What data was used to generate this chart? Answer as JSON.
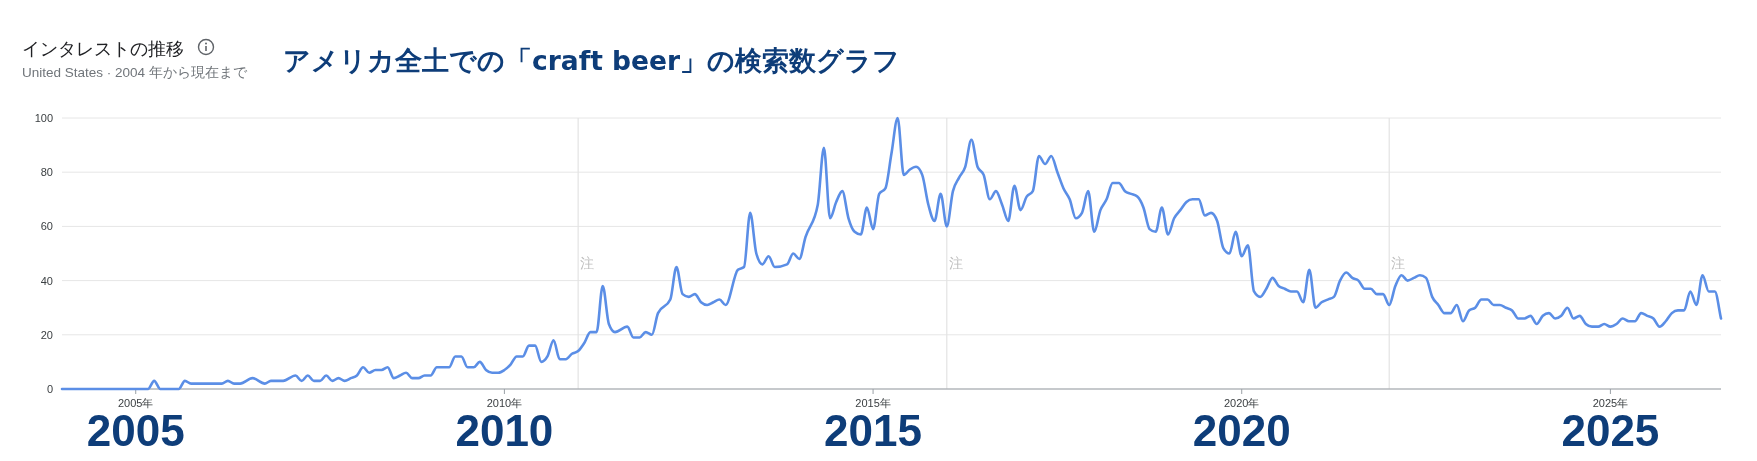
{
  "chart_data": {
    "type": "line",
    "title": "インタレストの推移",
    "subtitle": "United States · 2004 年から現在まで",
    "annotations": [
      "アメリカ全土での「craft beer」の検索数グラフ",
      "2005",
      "2010",
      "2015",
      "2020",
      "2025"
    ],
    "x": [
      "2004-01",
      "2005-03",
      "2005-04",
      "2005-05",
      "2005-08",
      "2005-09",
      "2005-10",
      "2006-03",
      "2006-04",
      "2006-05",
      "2006-06",
      "2006-08",
      "2006-10",
      "2006-11",
      "2007-01",
      "2007-03",
      "2007-04",
      "2007-05",
      "2007-06",
      "2007-07",
      "2007-08",
      "2007-09",
      "2007-10",
      "2007-11",
      "2007-12",
      "2008-01",
      "2008-02",
      "2008-03",
      "2008-04",
      "2008-05",
      "2008-06",
      "2008-07",
      "2008-08",
      "2008-09",
      "2008-10",
      "2008-11",
      "2008-12",
      "2009-01",
      "2009-02",
      "2009-04",
      "2009-05",
      "2009-06",
      "2009-07",
      "2009-08",
      "2009-09",
      "2009-10",
      "2009-11",
      "2009-12",
      "2010-01",
      "2010-02",
      "2010-03",
      "2010-04",
      "2010-05",
      "2010-06",
      "2010-07",
      "2010-08",
      "2010-09",
      "2010-10",
      "2010-11",
      "2010-12",
      "2011-01",
      "2011-02",
      "2011-03",
      "2011-04",
      "2011-05",
      "2011-06",
      "2011-07",
      "2011-09",
      "2011-10",
      "2011-11",
      "2011-12",
      "2012-01",
      "2012-02",
      "2012-04",
      "2012-05",
      "2012-06",
      "2012-07",
      "2012-08",
      "2012-09",
      "2012-10",
      "2012-11",
      "2012-12",
      "2013-01",
      "2013-03",
      "2013-04",
      "2013-05",
      "2013-06",
      "2013-07",
      "2013-08",
      "2013-09",
      "2013-11",
      "2013-12",
      "2014-01",
      "2014-02",
      "2014-04",
      "2014-05",
      "2014-06",
      "2014-07",
      "2014-08",
      "2014-09",
      "2014-10",
      "2014-11",
      "2014-12",
      "2015-01",
      "2015-02",
      "2015-03",
      "2015-04",
      "2015-05",
      "2015-06",
      "2015-07",
      "2015-08",
      "2015-09",
      "2015-10",
      "2015-11",
      "2015-12",
      "2016-01",
      "2016-02",
      "2016-03",
      "2016-04",
      "2016-05",
      "2016-06",
      "2016-07",
      "2016-08",
      "2016-09",
      "2016-10",
      "2016-11",
      "2016-12",
      "2017-01",
      "2017-02",
      "2017-03",
      "2017-04",
      "2017-05",
      "2017-06",
      "2017-07",
      "2017-08",
      "2017-09",
      "2017-10",
      "2017-11",
      "2017-12",
      "2018-01",
      "2018-02",
      "2018-03",
      "2018-04",
      "2018-05",
      "2018-06",
      "2018-07",
      "2018-08",
      "2018-09",
      "2018-10",
      "2018-11",
      "2018-12",
      "2019-01",
      "2019-02",
      "2019-03",
      "2019-04",
      "2019-05",
      "2019-06",
      "2019-07",
      "2019-08",
      "2019-09",
      "2019-10",
      "2019-11",
      "2019-12",
      "2020-01",
      "2020-02",
      "2020-03",
      "2020-04",
      "2020-05",
      "2020-06",
      "2020-07",
      "2020-08",
      "2020-09",
      "2020-10",
      "2020-11",
      "2020-12",
      "2021-01",
      "2021-02",
      "2021-03",
      "2021-04",
      "2021-05",
      "2021-06",
      "2021-07",
      "2021-08",
      "2021-09",
      "2021-10",
      "2021-11",
      "2021-12",
      "2022-01",
      "2022-02",
      "2022-03",
      "2022-04",
      "2022-05",
      "2022-06",
      "2022-07",
      "2022-08",
      "2022-09",
      "2022-10",
      "2022-11",
      "2022-12",
      "2023-01",
      "2023-02",
      "2023-03",
      "2023-04",
      "2023-05",
      "2023-06",
      "2023-07",
      "2023-08",
      "2023-09",
      "2023-10",
      "2023-11",
      "2023-12",
      "2024-01",
      "2024-02",
      "2024-03",
      "2024-04",
      "2024-05",
      "2024-06",
      "2024-07",
      "2024-08",
      "2024-09",
      "2024-10",
      "2024-11",
      "2024-12",
      "2025-01",
      "2025-02",
      "2025-03",
      "2025-04",
      "2025-05",
      "2025-06",
      "2025-07",
      "2025-08",
      "2025-09",
      "2025-10",
      "2025-11",
      "2025-12",
      "2026-01",
      "2026-02",
      "2026-03",
      "2026-04",
      "2026-05",
      "2026-06",
      "2026-07"
    ],
    "series": [
      {
        "color": "#5b8ee6",
        "values": [
          0,
          0,
          3,
          0,
          0,
          3,
          2,
          2,
          3,
          2,
          2,
          4,
          2,
          3,
          3,
          5,
          3,
          5,
          3,
          3,
          5,
          3,
          4,
          3,
          4,
          5,
          8,
          6,
          7,
          7,
          8,
          4,
          5,
          6,
          4,
          4,
          5,
          5,
          8,
          8,
          12,
          12,
          8,
          8,
          10,
          7,
          6,
          6,
          7,
          9,
          12,
          12,
          16,
          16,
          10,
          12,
          18,
          11,
          11,
          13,
          14,
          17,
          21,
          21,
          38,
          24,
          21,
          23,
          19,
          19,
          21,
          20,
          28,
          33,
          45,
          35,
          34,
          35,
          32,
          31,
          32,
          33,
          31,
          44,
          45,
          65,
          50,
          46,
          49,
          45,
          46,
          50,
          48,
          56,
          68,
          89,
          63,
          69,
          73,
          63,
          58,
          57,
          67,
          59,
          72,
          74,
          87,
          100,
          79,
          81,
          82,
          79,
          68,
          62,
          72,
          60,
          73,
          78,
          82,
          92,
          82,
          79,
          70,
          73,
          68,
          62,
          75,
          66,
          71,
          73,
          86,
          83,
          86,
          80,
          74,
          70,
          63,
          65,
          73,
          58,
          66,
          70,
          76,
          76,
          73,
          72,
          71,
          67,
          59,
          58,
          67,
          57,
          63,
          66,
          69,
          70,
          70,
          64,
          65,
          62,
          52,
          50,
          58,
          49,
          53,
          36,
          34,
          37,
          41,
          38,
          37,
          36,
          36,
          32,
          44,
          30,
          32,
          33,
          34,
          40,
          43,
          41,
          40,
          37,
          37,
          35,
          35,
          31,
          38,
          42,
          40,
          41,
          42,
          41,
          34,
          31,
          28,
          28,
          31,
          25,
          29,
          30,
          33,
          33,
          31,
          31,
          30,
          29,
          26,
          26,
          27,
          24,
          27,
          28,
          26,
          27,
          30,
          26,
          27,
          24,
          23,
          23,
          24,
          23,
          24,
          26,
          25,
          25,
          28,
          27,
          26,
          23,
          25,
          28,
          29,
          29,
          36,
          31,
          42,
          36,
          36,
          26
        ]
      }
    ],
    "xlim": [
      "2004-01",
      "2026-07"
    ],
    "xticks": [
      {
        "value": "2005",
        "label": "2005年"
      },
      {
        "value": "2010",
        "label": "2010年"
      },
      {
        "value": "2015",
        "label": "2015年"
      },
      {
        "value": "2020",
        "label": "2020年"
      },
      {
        "value": "2025",
        "label": "2025年"
      }
    ],
    "ylim": [
      0,
      100
    ],
    "yticks": [
      0,
      20,
      40,
      60,
      80,
      100
    ],
    "grid": "y",
    "marker": "none",
    "line_style": "solid",
    "ref_lines": [
      {
        "axis": "x",
        "value": "2011-01",
        "label": "注",
        "color": "#e3e3e3"
      },
      {
        "axis": "x",
        "value": "2016-01",
        "label": "注",
        "color": "#e3e3e3"
      },
      {
        "axis": "x",
        "value": "2022-01",
        "label": "注",
        "color": "#e3e3e3"
      }
    ]
  }
}
